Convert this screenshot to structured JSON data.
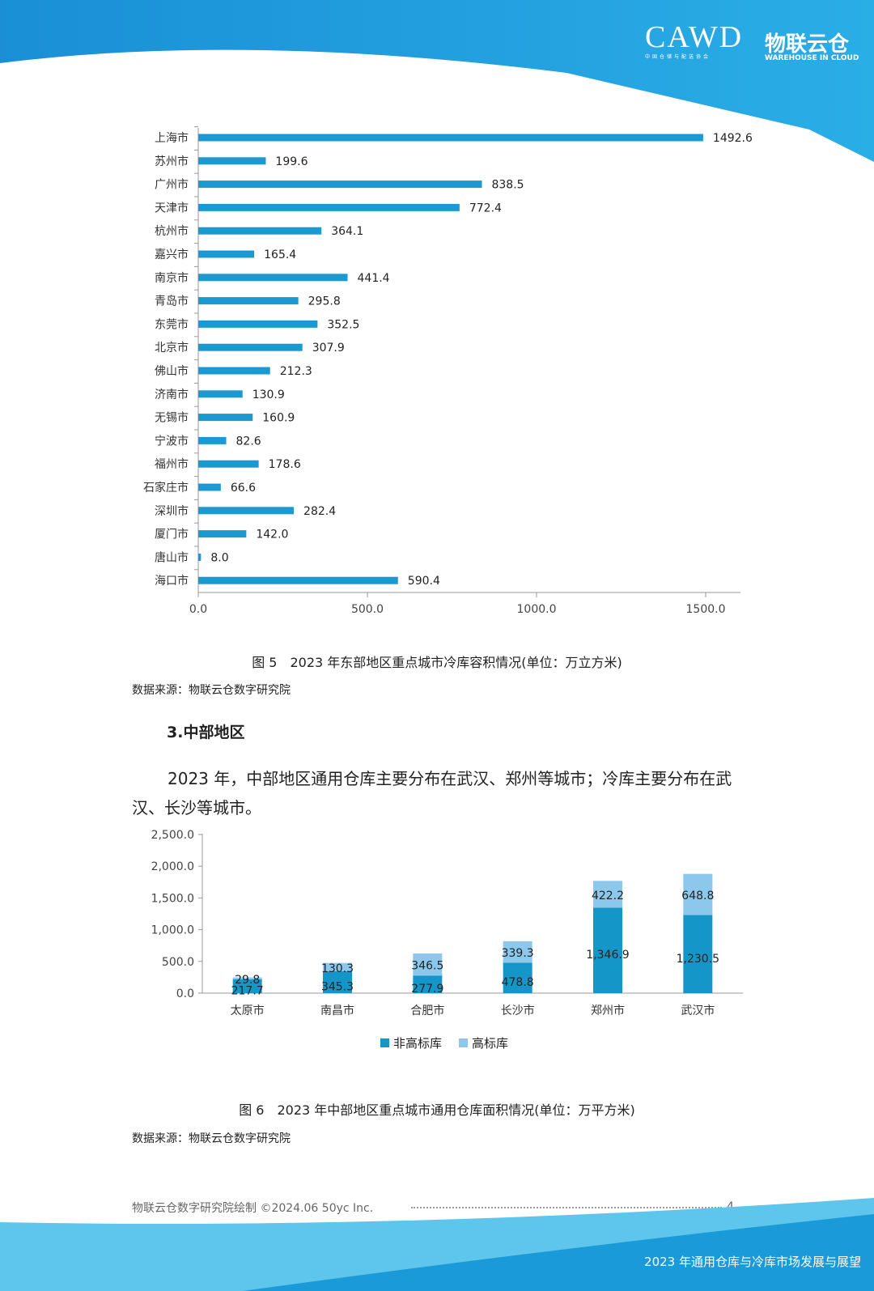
{
  "header": {
    "logo_cawd": "CAWD",
    "logo_cawd_sub": "中国仓储与配送协会",
    "logo_wic": "物联云仓",
    "logo_wic_sub": "WAREHOUSE IN CLOUD"
  },
  "chart_data": [
    {
      "type": "bar",
      "orientation": "horizontal",
      "title": "图 5　2023 年东部地区重点城市冷库容积情况(单位：万立方米)",
      "categories": [
        "上海市",
        "苏州市",
        "广州市",
        "天津市",
        "杭州市",
        "嘉兴市",
        "南京市",
        "青岛市",
        "东莞市",
        "北京市",
        "佛山市",
        "济南市",
        "无锡市",
        "宁波市",
        "福州市",
        "石家庄市",
        "深圳市",
        "厦门市",
        "唐山市",
        "海口市"
      ],
      "values": [
        1492.6,
        199.6,
        838.5,
        772.4,
        364.1,
        165.4,
        441.4,
        295.8,
        352.5,
        307.9,
        212.3,
        130.9,
        160.9,
        82.6,
        178.6,
        66.6,
        282.4,
        142.0,
        8.0,
        590.4
      ],
      "value_labels": [
        "1492.6",
        "199.6",
        "838.5",
        "772.4",
        "364.1",
        "165.4",
        "441.4",
        "295.8",
        "352.5",
        "307.9",
        "212.3",
        "130.9",
        "160.9",
        "82.6",
        "178.6",
        "66.6",
        "282.4",
        "142.0",
        "8.0",
        "590.4"
      ],
      "xticks": [
        "0.0",
        "500.0",
        "1000.0",
        "1500.0"
      ],
      "xlim": [
        0,
        1600
      ],
      "color": "#1a9ad0"
    },
    {
      "type": "bar",
      "stacked": true,
      "title": "图 6　2023 年中部地区重点城市通用仓库面积情况(单位：万平方米)",
      "categories": [
        "太原市",
        "南昌市",
        "合肥市",
        "长沙市",
        "郑州市",
        "武汉市"
      ],
      "series": [
        {
          "name": "非高标库",
          "values": [
            217.7,
            345.3,
            277.9,
            478.8,
            1346.9,
            1230.5
          ],
          "labels": [
            "217.7",
            "345.3",
            "277.9",
            "478.8",
            "1,346.9",
            "1,230.5"
          ],
          "color": "#1596c8"
        },
        {
          "name": "高标库",
          "values": [
            29.8,
            130.3,
            346.5,
            339.3,
            422.2,
            648.8
          ],
          "labels": [
            "29.8",
            "130.3",
            "346.5",
            "339.3",
            "422.2",
            "648.8"
          ],
          "color": "#8cc8ec"
        }
      ],
      "yticks": [
        "0.0",
        "500.0",
        "1,000.0",
        "1,500.0",
        "2,000.0",
        "2,500.0"
      ],
      "ylim": [
        0,
        2500
      ],
      "legend": "bottom"
    }
  ],
  "source1": "数据来源：物联云仓数字研究院",
  "source2": "数据来源：物联云仓数字研究院",
  "section_title": "3.中部地区",
  "paragraph": "2023 年，中部地区通用仓库主要分布在武汉、郑州等城市；冷库主要分布在武汉、长沙等城市。",
  "footer": {
    "credit": "物联云仓数字研究院绘制  ©2024.06 50yc Inc.",
    "page": "4",
    "doc_title": "2023 年通用仓库与冷库市场发展与展望"
  }
}
